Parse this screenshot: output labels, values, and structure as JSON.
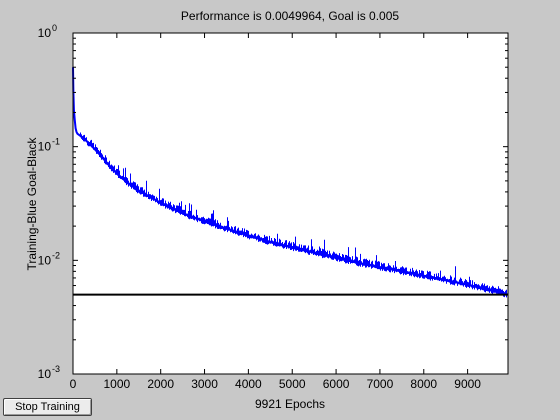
{
  "window": {
    "background": "#c8c8c8"
  },
  "stop_button": {
    "label": "Stop Training"
  },
  "chart_data": {
    "type": "line",
    "title": "Performance is 0.0049964, Goal is 0.005",
    "xlabel": "9921 Epochs",
    "ylabel": "Training-Blue  Goal-Black",
    "xlim": [
      0,
      9921
    ],
    "ylim": [
      0.001,
      1
    ],
    "yscale": "log",
    "grid": false,
    "x_ticks": [
      0,
      1000,
      2000,
      3000,
      4000,
      5000,
      6000,
      7000,
      8000,
      9000
    ],
    "x_tick_labels": [
      "0",
      "1000",
      "2000",
      "3000",
      "4000",
      "5000",
      "6000",
      "7000",
      "8000",
      "9000"
    ],
    "y_ticks": [
      0.001,
      0.01,
      0.1,
      1
    ],
    "y_tick_labels": [
      {
        "base": "10",
        "exp": "-3"
      },
      {
        "base": "10",
        "exp": "-2"
      },
      {
        "base": "10",
        "exp": "-1"
      },
      {
        "base": "10",
        "exp": "0"
      }
    ],
    "series": [
      {
        "color": "#0000ff",
        "x": [
          0,
          10,
          20,
          40,
          60,
          80,
          100,
          200,
          300,
          500,
          750,
          1000,
          1250,
          1500,
          2000,
          2500,
          3000,
          3500,
          4000,
          4500,
          5000,
          5500,
          6000,
          6500,
          7000,
          7500,
          8000,
          8500,
          9000,
          9500,
          9921
        ],
        "y": [
          0.5,
          0.3,
          0.21,
          0.17,
          0.145,
          0.135,
          0.13,
          0.122,
          0.113,
          0.095,
          0.074,
          0.058,
          0.048,
          0.041,
          0.032,
          0.026,
          0.022,
          0.019,
          0.0165,
          0.0145,
          0.013,
          0.0117,
          0.0105,
          0.0095,
          0.0087,
          0.008,
          0.0073,
          0.0067,
          0.0061,
          0.0055,
          0.0049964
        ]
      },
      {
        "color": "#000000",
        "x": [
          0,
          9921
        ],
        "y": [
          0.005,
          0.005
        ]
      }
    ]
  }
}
